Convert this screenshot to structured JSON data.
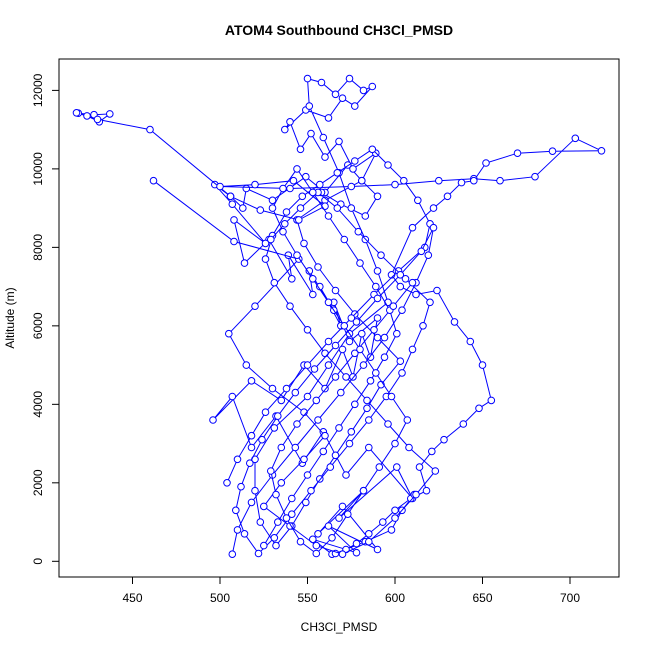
{
  "chart_data": {
    "type": "line",
    "title": "ATOM4 Southbound CH3Cl_PMSD",
    "xlabel": "CH3Cl_PMSD",
    "ylabel": "Altitude (m)",
    "xlim": [
      408,
      728
    ],
    "ylim": [
      -400,
      12800
    ],
    "xticks": [
      450,
      500,
      550,
      600,
      650,
      700
    ],
    "yticks": [
      0,
      2000,
      4000,
      6000,
      8000,
      10000,
      12000
    ],
    "grid": false,
    "legend": "none",
    "style": {
      "color": "#0000ff",
      "marker": "open-circle"
    },
    "series": [
      {
        "x": [
          564,
          553,
          578,
          562,
          590,
          570,
          556,
          582,
          568,
          601,
          610,
          585,
          572,
          559,
          547,
          532,
          518,
          507,
          496,
          518,
          535,
          548,
          560,
          570,
          576,
          581,
          586,
          590,
          574,
          565,
          569,
          557,
          565,
          551,
          553,
          539,
          541,
          528,
          514,
          508,
          526,
          507,
          497,
          506,
          513,
          515,
          530,
          549,
          560,
          573,
          581,
          589,
          576,
          568,
          560,
          552,
          546,
          540,
          537,
          549,
          562,
          570,
          577,
          587,
          582,
          574,
          566,
          558,
          550,
          551,
          559,
          568,
          575,
          583,
          590,
          596,
          574,
          562,
          550,
          531,
          520,
          520,
          523,
          532,
          541,
          549,
          557,
          566,
          575,
          584,
          592,
          603,
          590,
          577,
          566,
          556,
          548,
          544,
          560,
          581,
          590,
          583,
          569,
          558
        ],
        "y": [
          180,
          560,
          220,
          900,
          300,
          1400,
          700,
          1800,
          1100,
          2400,
          1600,
          2900,
          2200,
          3300,
          2500,
          3700,
          2900,
          4200,
          3600,
          4600,
          4100,
          5000,
          4400,
          5400,
          4700,
          5800,
          5200,
          6200,
          5600,
          6600,
          6000,
          7000,
          6400,
          7400,
          6800,
          7800,
          7200,
          8200,
          7600,
          8700,
          8100,
          9100,
          9600,
          9300,
          9000,
          9500,
          9200,
          9800,
          9400,
          10100,
          9700,
          10400,
          10000,
          10700,
          10300,
          10900,
          10500,
          11200,
          11000,
          11500,
          11300,
          11800,
          11600,
          12100,
          12000,
          12300,
          11900,
          12200,
          12300,
          11600,
          10800,
          9900,
          9000,
          8200,
          7400,
          6600,
          5800,
          5000,
          4200,
          3400,
          2600,
          1800,
          1000,
          400,
          900,
          1500,
          2100,
          2700,
          3300,
          3900,
          4500,
          5100,
          5700,
          6300,
          6900,
          7500,
          8100,
          8700,
          9200,
          9700,
          9300,
          8800,
          9100,
          9400
        ]
      },
      {
        "x": [
          419,
          428,
          437,
          431,
          424,
          418,
          430,
          460,
          506,
          523,
          545,
          560,
          542,
          520,
          500,
          540,
          575,
          600,
          625,
          645,
          660,
          680,
          703,
          718,
          690,
          670,
          652,
          645,
          638,
          630,
          622,
          610,
          598,
          603,
          612,
          624,
          634,
          643,
          650,
          655,
          648,
          639,
          628,
          621,
          614,
          618,
          609,
          600,
          593,
          585,
          578,
          572,
          566,
          583,
          598,
          604,
          611
        ],
        "y": [
          11420,
          11380,
          11400,
          11200,
          11350,
          11430,
          11260,
          11000,
          9300,
          8950,
          8700,
          9050,
          9700,
          9600,
          9550,
          9500,
          9550,
          9600,
          9700,
          9750,
          9700,
          9800,
          10780,
          10460,
          10450,
          10400,
          10150,
          9700,
          9650,
          9300,
          9000,
          8500,
          7300,
          7000,
          6800,
          6900,
          6100,
          5600,
          5000,
          4100,
          3900,
          3500,
          3100,
          2800,
          2400,
          1800,
          1600,
          1300,
          1000,
          700,
          450,
          300,
          200,
          500,
          800,
          1300,
          1700
        ]
      },
      {
        "x": [
          462,
          508,
          545,
          520,
          505,
          515,
          530,
          548,
          560,
          548,
          535,
          525,
          540,
          555,
          570,
          585,
          600,
          612,
          623,
          608,
          596,
          584,
          572,
          560,
          550,
          540,
          531,
          526,
          530,
          538,
          547,
          557,
          567,
          577,
          587,
          596,
          605,
          613,
          620,
          617,
          602,
          588,
          575,
          562,
          550,
          538,
          526,
          518,
          510,
          504
        ],
        "y": [
          9700,
          8150,
          7700,
          6500,
          5800,
          5000,
          4400,
          3800,
          3200,
          2600,
          2000,
          1400,
          900,
          400,
          180,
          500,
          1100,
          1700,
          2300,
          2900,
          3500,
          4100,
          4700,
          5300,
          5900,
          6500,
          7100,
          7700,
          8300,
          8900,
          9300,
          9600,
          9900,
          10200,
          10500,
          10100,
          9700,
          9200,
          8600,
          8000,
          7400,
          6800,
          6200,
          5600,
          5000,
          4400,
          3800,
          3200,
          2600,
          2000
        ]
      },
      {
        "x": [
          507,
          510,
          518,
          530,
          543,
          556,
          569,
          582,
          594,
          604,
          612,
          619,
          622,
          615,
          603,
          590,
          578,
          566,
          554,
          543,
          533,
          524,
          517,
          512,
          509,
          514,
          522,
          531,
          541,
          552,
          563,
          574,
          585,
          595,
          604,
          610,
          616,
          620,
          606,
          592,
          579,
          567,
          556,
          546,
          537,
          529
        ],
        "y": [
          180,
          800,
          1500,
          2200,
          2900,
          3600,
          4300,
          5000,
          5700,
          6400,
          7100,
          7800,
          8500,
          7900,
          7300,
          6700,
          6100,
          5500,
          4900,
          4300,
          3700,
          3100,
          2500,
          1900,
          1300,
          700,
          200,
          600,
          1200,
          1800,
          2400,
          3000,
          3600,
          4200,
          4800,
          5400,
          6000,
          6600,
          7200,
          7800,
          8400,
          9000,
          9400,
          9000,
          8600,
          8200
        ]
      },
      {
        "x": [
          525,
          533,
          541,
          550,
          559,
          568,
          577,
          586,
          594,
          601,
          597,
          589,
          580,
          571,
          562,
          553,
          544,
          536,
          530,
          536,
          544,
          553,
          562,
          571,
          580,
          589,
          598,
          607,
          600,
          591,
          582,
          573,
          564,
          555,
          546,
          538,
          532,
          529,
          535,
          544,
          555,
          566,
          577,
          588,
          599,
          610
        ],
        "y": [
          400,
          1000,
          1600,
          2200,
          2800,
          3400,
          4000,
          4600,
          5200,
          5800,
          6400,
          7000,
          7600,
          8200,
          8800,
          9400,
          10000,
          9500,
          9000,
          8400,
          7800,
          7200,
          6600,
          6000,
          5400,
          4800,
          4200,
          3600,
          3000,
          2400,
          1800,
          1200,
          600,
          200,
          500,
          1100,
          1700,
          2300,
          2900,
          3500,
          4100,
          4700,
          5300,
          5900,
          6500,
          7100
        ]
      }
    ]
  }
}
